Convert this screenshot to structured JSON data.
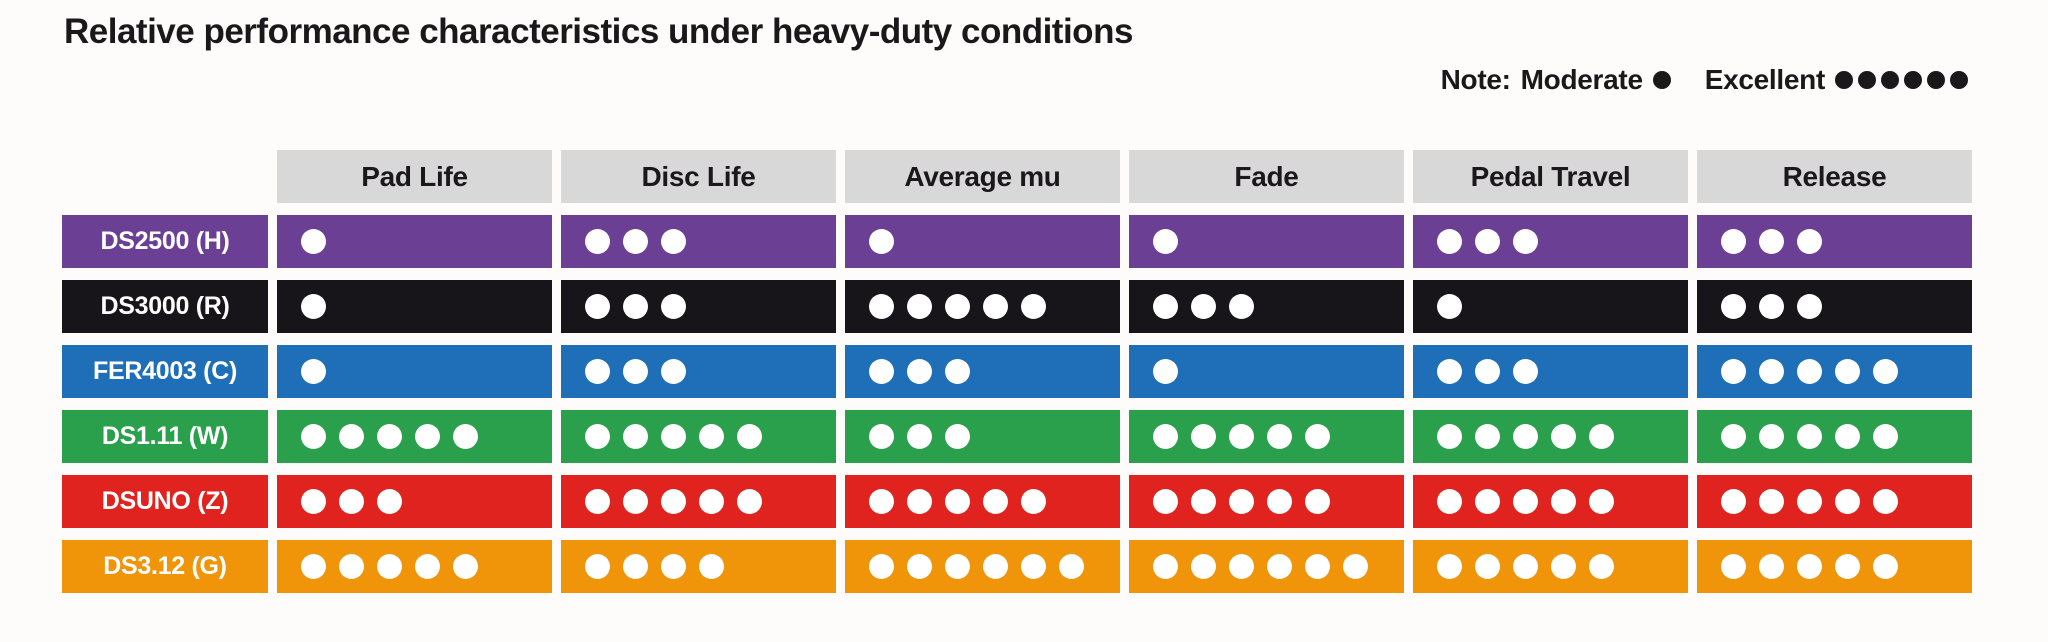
{
  "title": "Relative performance characteristics under heavy-duty conditions",
  "legend": {
    "note_label": "Note:",
    "moderate_label": "Moderate",
    "moderate_dots": 1,
    "excellent_label": "Excellent",
    "excellent_dots": 6
  },
  "colors": {
    "header_bg": "#d8d8d8",
    "ink": "#1b181c",
    "dot": "#ffffff",
    "background": "#fdfcfa"
  },
  "chart_data": {
    "type": "table",
    "title": "Relative performance characteristics under heavy-duty conditions",
    "rating_scale": {
      "min": 1,
      "min_label": "Moderate",
      "max": 6,
      "max_label": "Excellent"
    },
    "columns": [
      "Pad Life",
      "Disc Life",
      "Average mu",
      "Fade",
      "Pedal Travel",
      "Release"
    ],
    "rows": [
      {
        "label": "DS2500 (H)",
        "color": "#6b3f94",
        "values": [
          1,
          3,
          1,
          1,
          3,
          3
        ]
      },
      {
        "label": "DS3000 (R)",
        "color": "#17141a",
        "values": [
          1,
          3,
          5,
          3,
          1,
          3
        ]
      },
      {
        "label": "FER4003 (C)",
        "color": "#1e6fb7",
        "values": [
          1,
          3,
          3,
          1,
          3,
          5
        ]
      },
      {
        "label": "DS1.11 (W)",
        "color": "#2aa04d",
        "values": [
          5,
          5,
          3,
          5,
          5,
          5
        ]
      },
      {
        "label": "DSUNO (Z)",
        "color": "#e0231f",
        "values": [
          3,
          5,
          5,
          5,
          5,
          5
        ]
      },
      {
        "label": "DS3.12 (G)",
        "color": "#f0940a",
        "values": [
          5,
          4,
          6,
          6,
          5,
          5
        ]
      }
    ]
  }
}
